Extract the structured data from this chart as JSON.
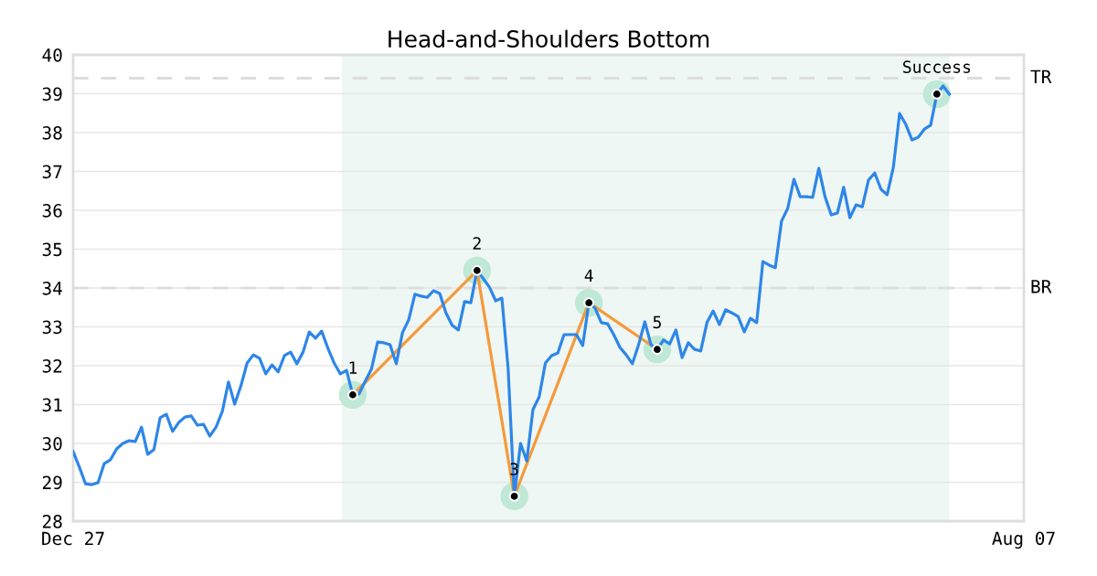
{
  "chart_data": {
    "type": "line",
    "title": "Head-and-Shoulders Bottom",
    "categories": [
      "Dec 27",
      null,
      null,
      null,
      null,
      null,
      null,
      null,
      null,
      null,
      null,
      null,
      null,
      null,
      null,
      null,
      null,
      null,
      null,
      null,
      null,
      null,
      null,
      null,
      null,
      null,
      null,
      null,
      null,
      null,
      null,
      null,
      null,
      null,
      null,
      null,
      null,
      null,
      null,
      null,
      null,
      null,
      null,
      null,
      null,
      null,
      null,
      null,
      null,
      null,
      null,
      null,
      null,
      null,
      null,
      null,
      null,
      null,
      null,
      null,
      null,
      null,
      null,
      null,
      null,
      null,
      null,
      null,
      null,
      null,
      null,
      null,
      null,
      null,
      null,
      null,
      null,
      null,
      null,
      null,
      null,
      null,
      null,
      null,
      null,
      null,
      null,
      null,
      null,
      null,
      null,
      null,
      null,
      null,
      null,
      null,
      null,
      null,
      null,
      null,
      null,
      null,
      null,
      null,
      null,
      null,
      null,
      null,
      null,
      null,
      null,
      null,
      null,
      null,
      null,
      null,
      null,
      null,
      null,
      null,
      null,
      null,
      null,
      null,
      null,
      null,
      null,
      null,
      null,
      null,
      null,
      null,
      null,
      null,
      null,
      null,
      null,
      null,
      null,
      null,
      null,
      null,
      null,
      null,
      null,
      null,
      null,
      null,
      null,
      null,
      null,
      null,
      null,
      "Aug 07"
    ],
    "ylim": [
      28,
      40
    ],
    "yticks": [
      28,
      29,
      30,
      31,
      32,
      33,
      34,
      35,
      36,
      37,
      38,
      39,
      40
    ],
    "grid": "y",
    "legend": false,
    "series": [
      {
        "color": "#2e86e8",
        "values": [
          29.79,
          29.39,
          28.96,
          28.94,
          28.99,
          29.48,
          29.58,
          29.86,
          30.0,
          30.07,
          30.05,
          30.42,
          29.72,
          29.84,
          30.66,
          30.75,
          30.31,
          30.54,
          30.68,
          30.71,
          30.47,
          30.49,
          30.19,
          30.42,
          30.82,
          31.58,
          31.01,
          31.48,
          32.07,
          32.28,
          32.19,
          31.79,
          32.02,
          31.84,
          32.26,
          32.35,
          32.05,
          32.35,
          32.87,
          32.71,
          32.89,
          32.45,
          32.07,
          31.79,
          31.88,
          31.25,
          31.27,
          31.6,
          31.91,
          32.61,
          32.59,
          32.54,
          32.05,
          32.85,
          33.18,
          33.84,
          33.79,
          33.76,
          33.93,
          33.86,
          33.36,
          33.04,
          32.92,
          33.65,
          33.62,
          34.45,
          34.24,
          34.02,
          33.67,
          33.74,
          31.93,
          28.64,
          30.0,
          29.55,
          30.87,
          31.2,
          32.07,
          32.26,
          32.33,
          32.8,
          32.8,
          32.8,
          32.52,
          33.62,
          33.48,
          33.11,
          33.08,
          32.8,
          32.47,
          32.28,
          32.05,
          32.54,
          33.13,
          32.54,
          32.42,
          32.66,
          32.56,
          32.92,
          32.21,
          32.59,
          32.42,
          32.38,
          33.11,
          33.41,
          33.06,
          33.44,
          33.36,
          33.27,
          32.87,
          33.22,
          33.11,
          34.68,
          34.59,
          34.52,
          35.72,
          36.05,
          36.8,
          36.35,
          36.35,
          36.33,
          37.08,
          36.35,
          35.88,
          35.93,
          36.59,
          35.81,
          36.14,
          36.09,
          36.78,
          36.96,
          36.54,
          36.4,
          37.11,
          38.49,
          38.21,
          37.81,
          37.88,
          38.09,
          38.19,
          38.99,
          39.2,
          38.99,
          null,
          null,
          null,
          null,
          null,
          null,
          null,
          null,
          null,
          null,
          null,
          null
        ]
      },
      {
        "type": "line",
        "color": "#f59a3c",
        "marker": "circle",
        "values": [
          null,
          null,
          null,
          null,
          null,
          null,
          null,
          null,
          null,
          null,
          null,
          null,
          null,
          null,
          null,
          null,
          null,
          null,
          null,
          null,
          null,
          null,
          null,
          null,
          null,
          null,
          null,
          null,
          null,
          null,
          null,
          null,
          null,
          null,
          null,
          null,
          null,
          null,
          null,
          null,
          null,
          null,
          null,
          null,
          null,
          31.25,
          null,
          null,
          null,
          null,
          null,
          null,
          null,
          null,
          null,
          null,
          null,
          null,
          null,
          null,
          null,
          null,
          null,
          null,
          null,
          34.45,
          null,
          null,
          null,
          null,
          null,
          28.64,
          null,
          null,
          null,
          null,
          null,
          null,
          null,
          null,
          null,
          null,
          null,
          33.62,
          null,
          null,
          null,
          null,
          null,
          null,
          null,
          null,
          null,
          null,
          32.42,
          null,
          null,
          null,
          null,
          null,
          null,
          null,
          null,
          null,
          null,
          null,
          null,
          null,
          null,
          null,
          null,
          null,
          null,
          null,
          null,
          null,
          null,
          null,
          null,
          null,
          null,
          null,
          null,
          null,
          null,
          null,
          null,
          null,
          null,
          null,
          null,
          null,
          null,
          null,
          null,
          null,
          null,
          null,
          null,
          null,
          null,
          null,
          null,
          null,
          null,
          null,
          null,
          null,
          null,
          null,
          null,
          null,
          null,
          null
        ]
      },
      {
        "type": "scatter",
        "color": "#bfe8d6",
        "marker": "circle",
        "values": [
          null,
          null,
          null,
          null,
          null,
          null,
          null,
          null,
          null,
          null,
          null,
          null,
          null,
          null,
          null,
          null,
          null,
          null,
          null,
          null,
          null,
          null,
          null,
          null,
          null,
          null,
          null,
          null,
          null,
          null,
          null,
          null,
          null,
          null,
          null,
          null,
          null,
          null,
          null,
          null,
          null,
          null,
          null,
          null,
          null,
          31.25,
          null,
          null,
          null,
          null,
          null,
          null,
          null,
          null,
          null,
          null,
          null,
          null,
          null,
          null,
          null,
          null,
          null,
          null,
          null,
          34.45,
          null,
          null,
          null,
          null,
          null,
          28.64,
          null,
          null,
          null,
          null,
          null,
          null,
          null,
          null,
          null,
          null,
          null,
          33.62,
          null,
          null,
          null,
          null,
          null,
          null,
          null,
          null,
          null,
          null,
          32.42,
          null,
          null,
          null,
          null,
          null,
          null,
          null,
          null,
          null,
          null,
          null,
          null,
          null,
          null,
          null,
          null,
          null,
          null,
          null,
          null,
          null,
          null,
          null,
          null,
          null,
          null,
          null,
          null,
          null,
          null,
          null,
          null,
          null,
          null,
          null,
          null,
          null,
          null,
          null,
          null,
          null,
          null,
          null,
          null,
          38.99,
          null,
          null,
          null,
          null,
          null,
          null,
          null,
          null,
          null,
          null,
          null,
          null,
          null,
          null
        ]
      }
    ],
    "annotations": [
      {
        "text": "1",
        "y": 31.25
      },
      {
        "text": "2",
        "y": 34.45
      },
      {
        "text": "3",
        "y": 28.64
      },
      {
        "text": "4",
        "y": 33.62
      },
      {
        "text": "5",
        "y": 32.42
      },
      {
        "text": "Success",
        "y": 38.99
      }
    ],
    "ref_lines": [
      {
        "axis": "y",
        "value": 39.4,
        "label": "TR",
        "color": "#dddddd",
        "line_style": "dashed"
      },
      {
        "axis": "y",
        "value": 34.0,
        "label": "BR",
        "color": "#dddddd",
        "line_style": "dashed"
      }
    ]
  }
}
